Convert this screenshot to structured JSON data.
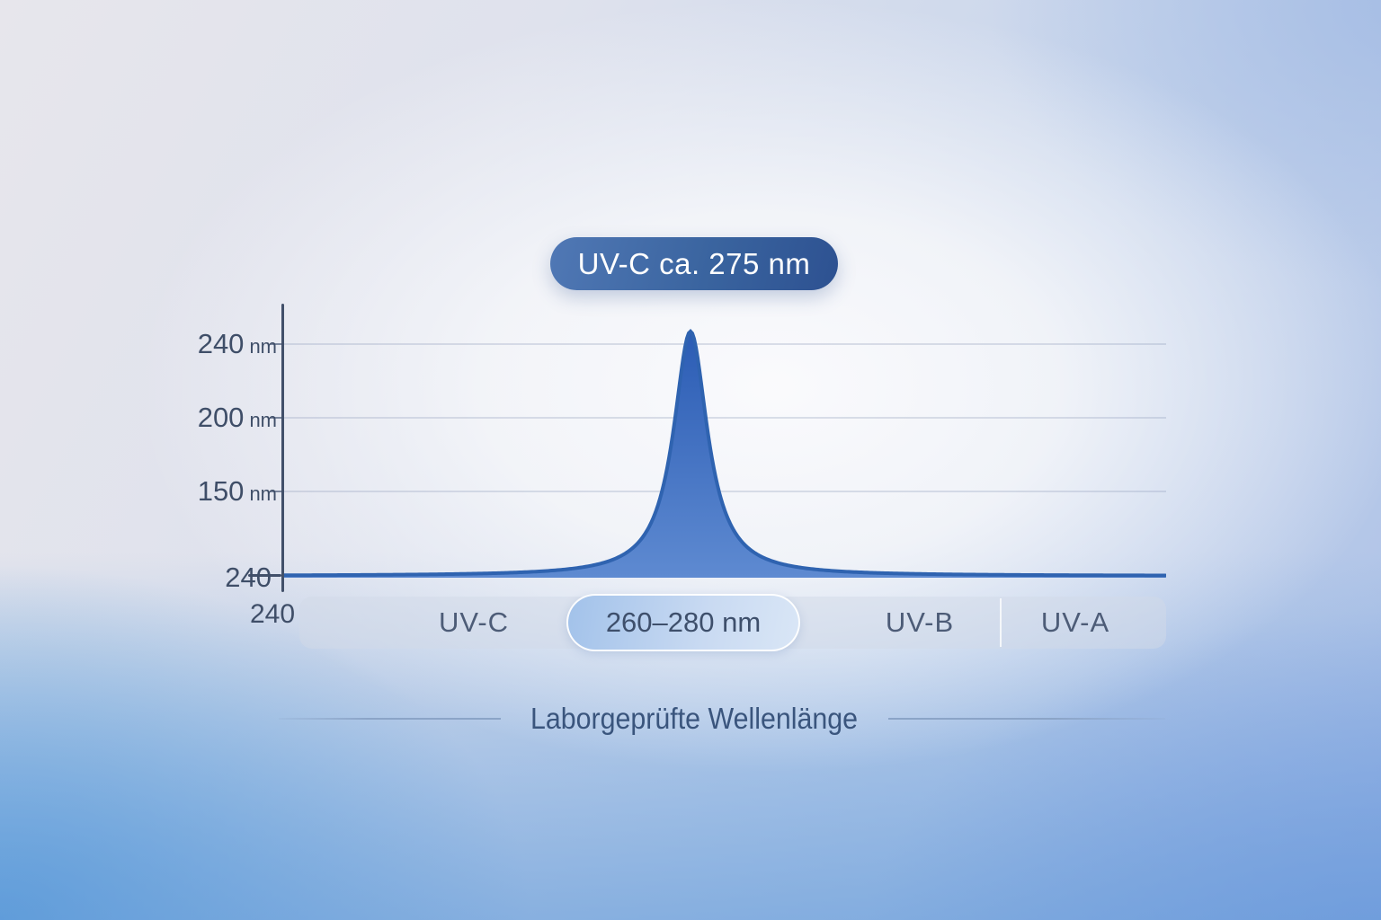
{
  "badge": {
    "label": "UV-C ca. 275 nm"
  },
  "y_axis": {
    "labels": [
      {
        "num": "240",
        "unit": "nm"
      },
      {
        "num": "200",
        "unit": "nm"
      },
      {
        "num": "150",
        "unit": "nm"
      },
      {
        "num": "240",
        "unit": ""
      }
    ]
  },
  "x_axis": {
    "origin_label": "240"
  },
  "spectrum_band": {
    "uvc": "UV-C",
    "range": "260–280 nm",
    "uvb": "UV-B",
    "uva": "UV-A"
  },
  "caption": {
    "title": "Laborgeprüfte Wellenlänge"
  },
  "colors": {
    "curve_top": "#2b5cb4",
    "curve_bottom": "#5e8ad1",
    "curve_stroke": "#2f63b0",
    "badge_from": "#5078b5",
    "badge_to": "#2d5191",
    "axis": "#42506a",
    "text_dark": "#3f4e68",
    "caption_text": "#3a557d"
  },
  "chart_data": {
    "type": "area",
    "title": "Laborgeprüfte Wellenlänge",
    "annotation_badge": "UV-C ca. 275 nm",
    "peak_wavelength_nm": 275,
    "highlight_range": "260–280 nm",
    "x_axis": {
      "origin_label": "240",
      "segment_labels": [
        "UV-C",
        "UV-B",
        "UV-A"
      ]
    },
    "y_axis_tick_labels": [
      "240 nm",
      "200 nm",
      "150 nm",
      "240"
    ],
    "grid": true,
    "legend": false,
    "series": [
      {
        "shape": "lorentzian",
        "peak_x_frac": 0.4607,
        "half_width_frac": 0.0235,
        "peak_height_frac": 0.845,
        "baseline_frac": 0.941
      }
    ]
  }
}
